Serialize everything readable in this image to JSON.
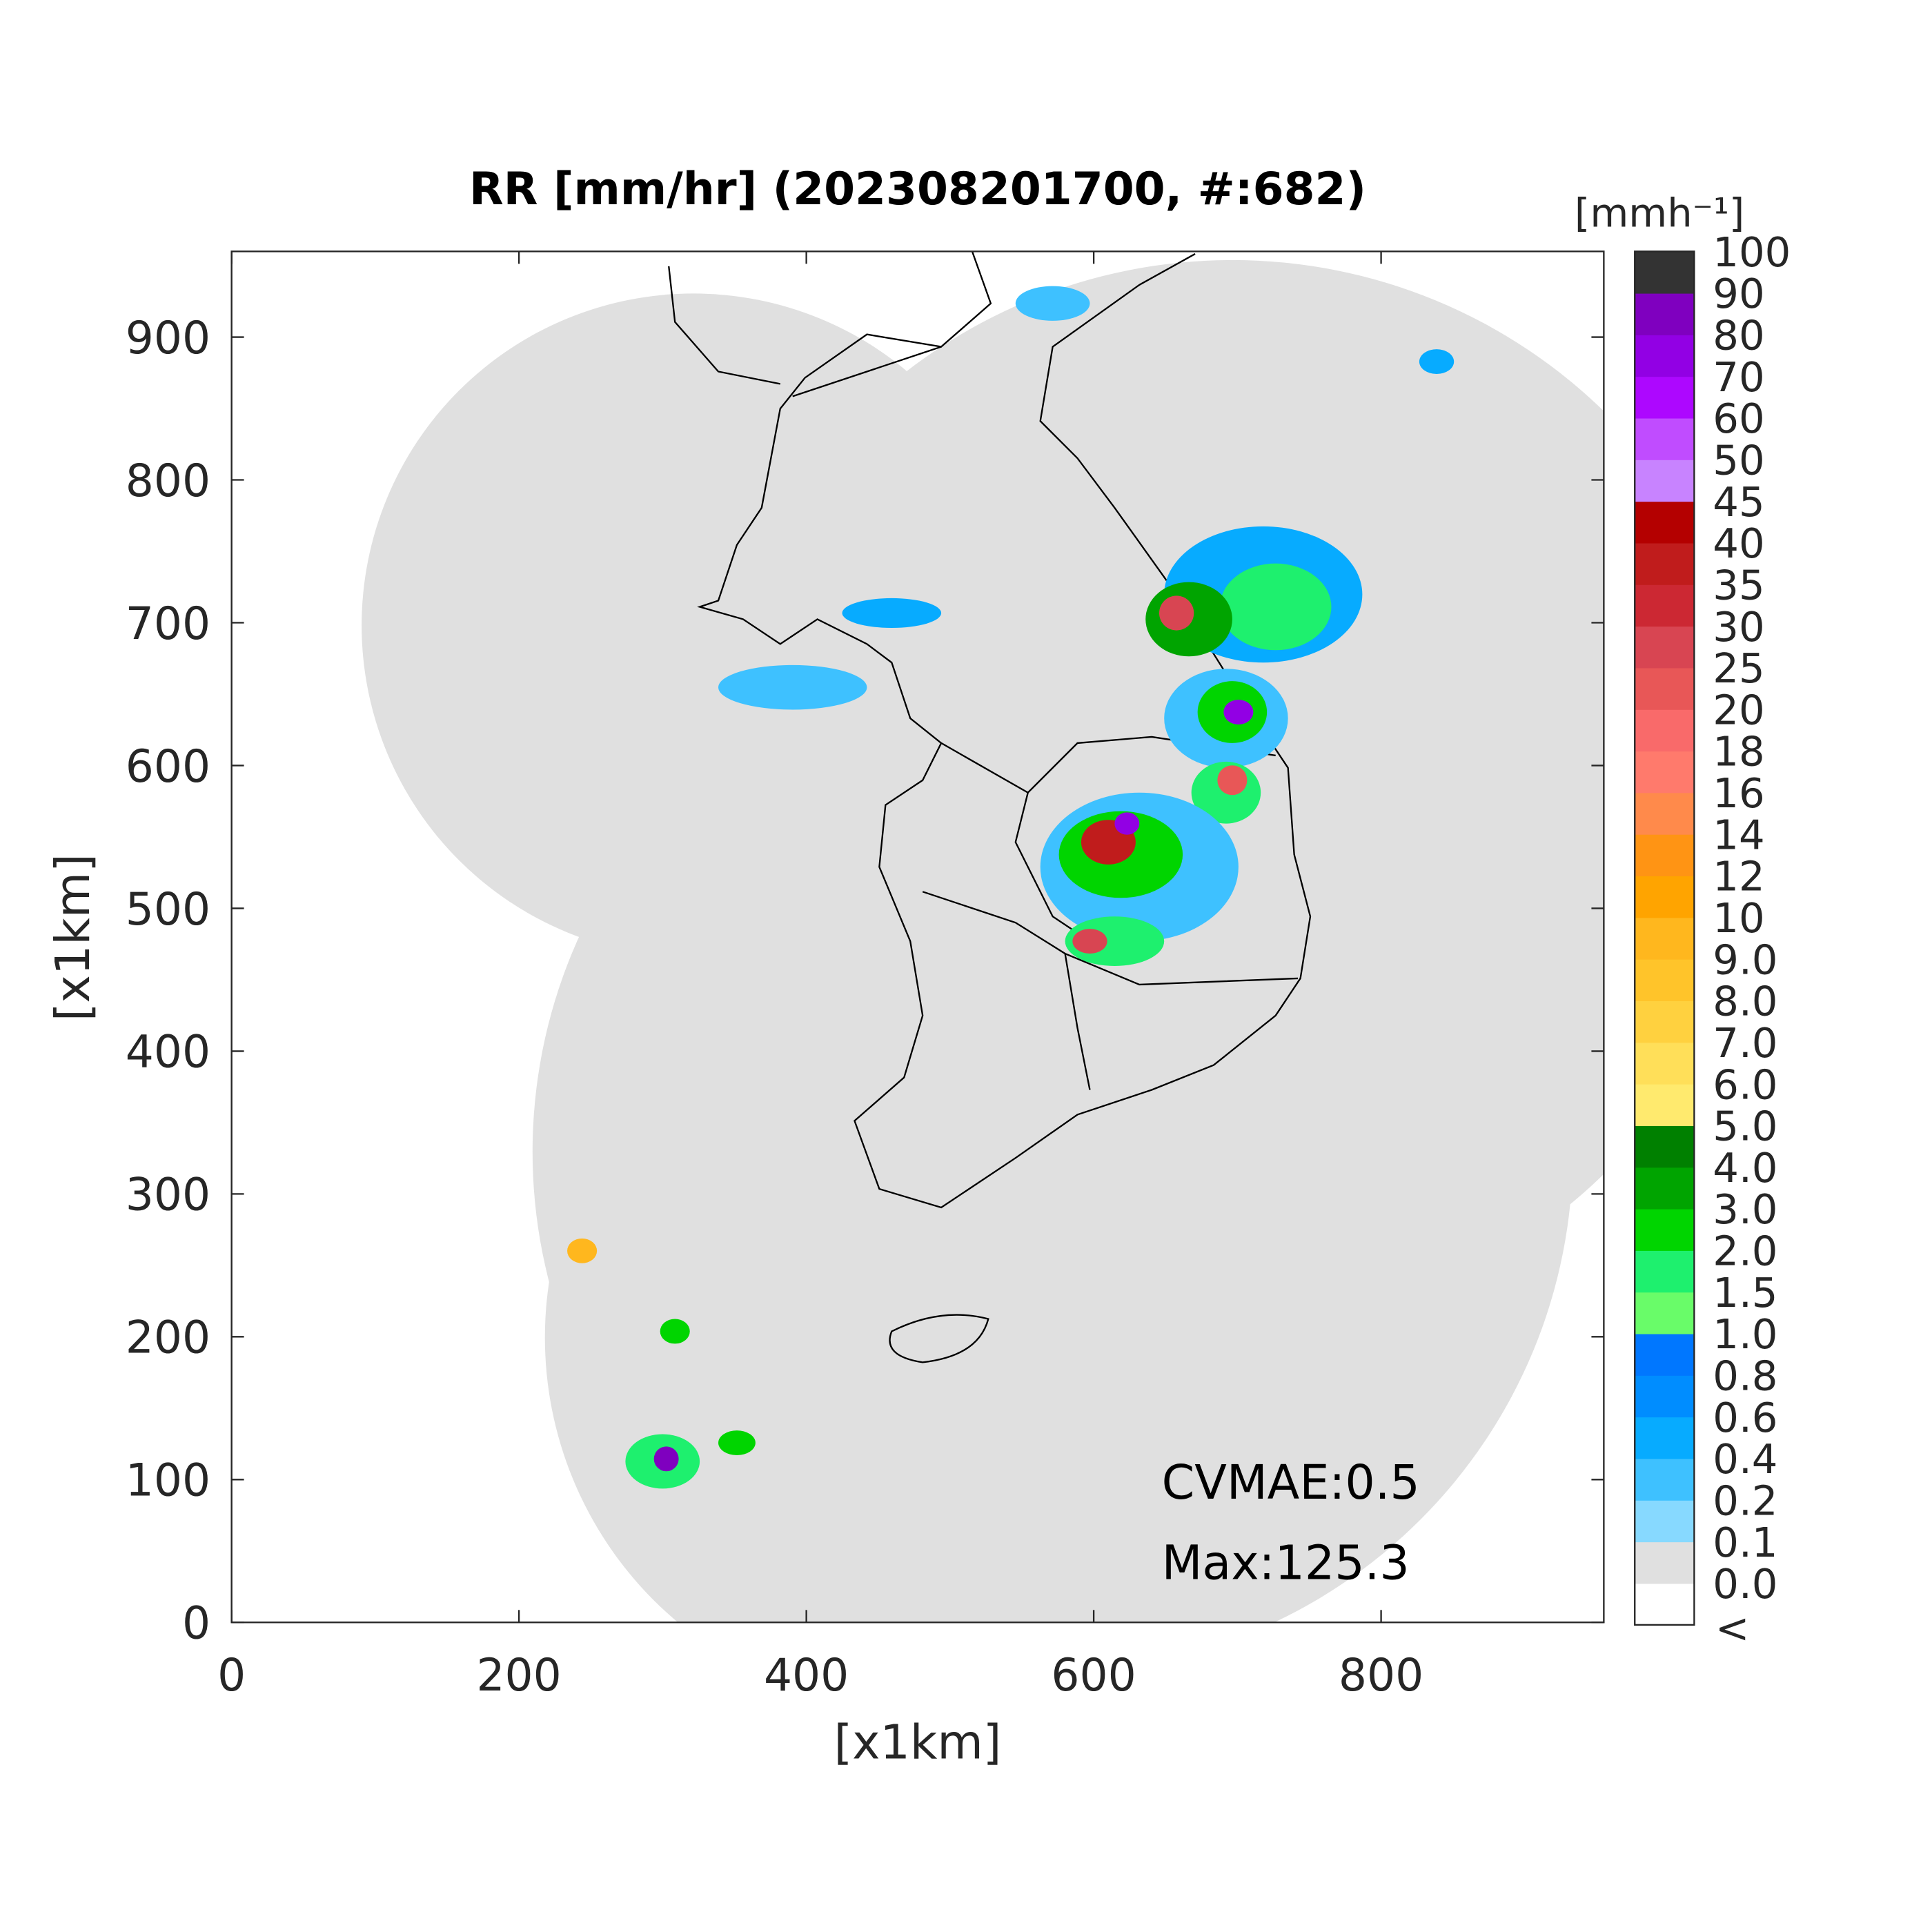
{
  "chart_data": {
    "type": "heatmap",
    "title": "RR [mm/hr] (202308201700, #:682)",
    "xlabel": "[x1km]",
    "ylabel": "[x1km]",
    "xlim": [
      0,
      955
    ],
    "ylim": [
      0,
      960
    ],
    "xticks": [
      0,
      200,
      400,
      600,
      800
    ],
    "yticks": [
      0,
      100,
      200,
      300,
      400,
      500,
      600,
      700,
      800,
      900
    ],
    "annotations": [
      "CVMAE:0.5",
      "Max:125.3"
    ],
    "colorbar": {
      "label": "[mmh⁻¹]",
      "under_label": "<",
      "under_color": "#ffffff",
      "ticks": [
        {
          "value": 0,
          "label": "0.0"
        },
        0.1,
        0.2,
        0.4,
        0.6,
        0.8,
        {
          "value": 1,
          "label": "1.0"
        },
        1.5,
        {
          "value": 2,
          "label": "2.0"
        },
        {
          "value": 3,
          "label": "3.0"
        },
        {
          "value": 4,
          "label": "4.0"
        },
        {
          "value": 5,
          "label": "5.0"
        },
        {
          "value": 6,
          "label": "6.0"
        },
        {
          "value": 7,
          "label": "7.0"
        },
        {
          "value": 8,
          "label": "8.0"
        },
        {
          "value": 9,
          "label": "9.0"
        },
        10,
        12,
        14,
        16,
        18,
        20,
        25,
        30,
        35,
        40,
        45,
        50,
        60,
        70,
        80,
        90,
        100
      ],
      "colors": [
        "#e0e0e0",
        "#87d9ff",
        "#3ec1ff",
        "#07abff",
        "#008dff",
        "#0077ff",
        "#69fc69",
        "#1ef06e",
        "#00d500",
        "#00a400",
        "#008000",
        "#ffea6e",
        "#ffdf59",
        "#ffd13f",
        "#ffc42a",
        "#ffb71e",
        "#ffa400",
        "#ff9414",
        "#ff8a4b",
        "#ff7a6c",
        "#f96a6a",
        "#e85757",
        "#d84552",
        "#cc2833",
        "#c01c1c",
        "#b40000",
        "#c883ff",
        "#c04cff",
        "#ad07ff",
        "#9200e4",
        "#7f00bf",
        "#333333"
      ]
    }
  }
}
